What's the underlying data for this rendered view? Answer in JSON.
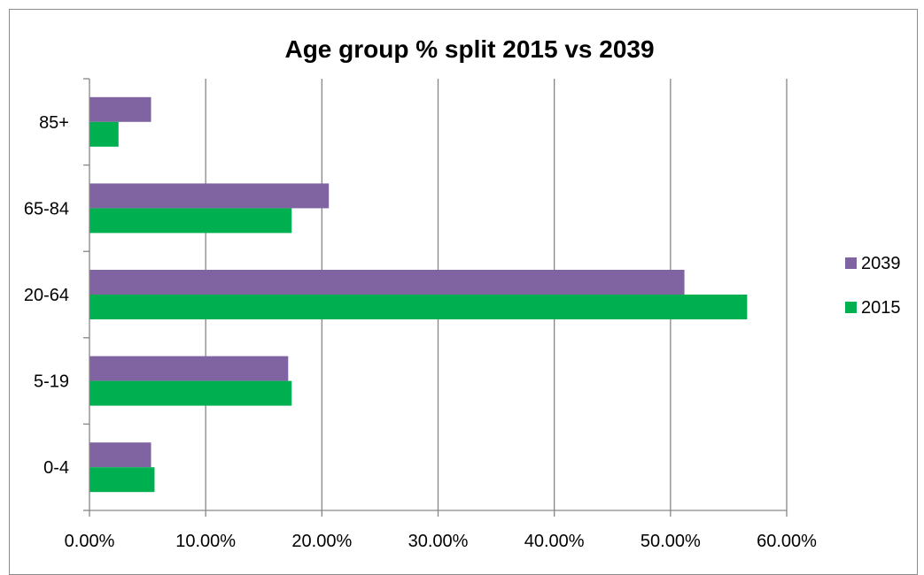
{
  "chart_data": {
    "type": "bar",
    "orientation": "horizontal",
    "title": "Age group % split 2015 vs 2039",
    "categories": [
      "0-4",
      "5-19",
      "20-64",
      "65-84",
      "85+"
    ],
    "series": [
      {
        "name": "2015",
        "color": "#00b050",
        "values": [
          5.6,
          17.4,
          56.6,
          17.4,
          2.5
        ]
      },
      {
        "name": "2039",
        "color": "#8064a2",
        "values": [
          5.3,
          17.1,
          51.2,
          20.6,
          5.3
        ]
      }
    ],
    "xticks": [
      "0.00%",
      "10.00%",
      "20.00%",
      "30.00%",
      "40.00%",
      "50.00%",
      "60.00%"
    ],
    "xlim": [
      0,
      60
    ],
    "grid": true,
    "legend": "right",
    "legend_order": [
      "2039",
      "2015"
    ]
  }
}
